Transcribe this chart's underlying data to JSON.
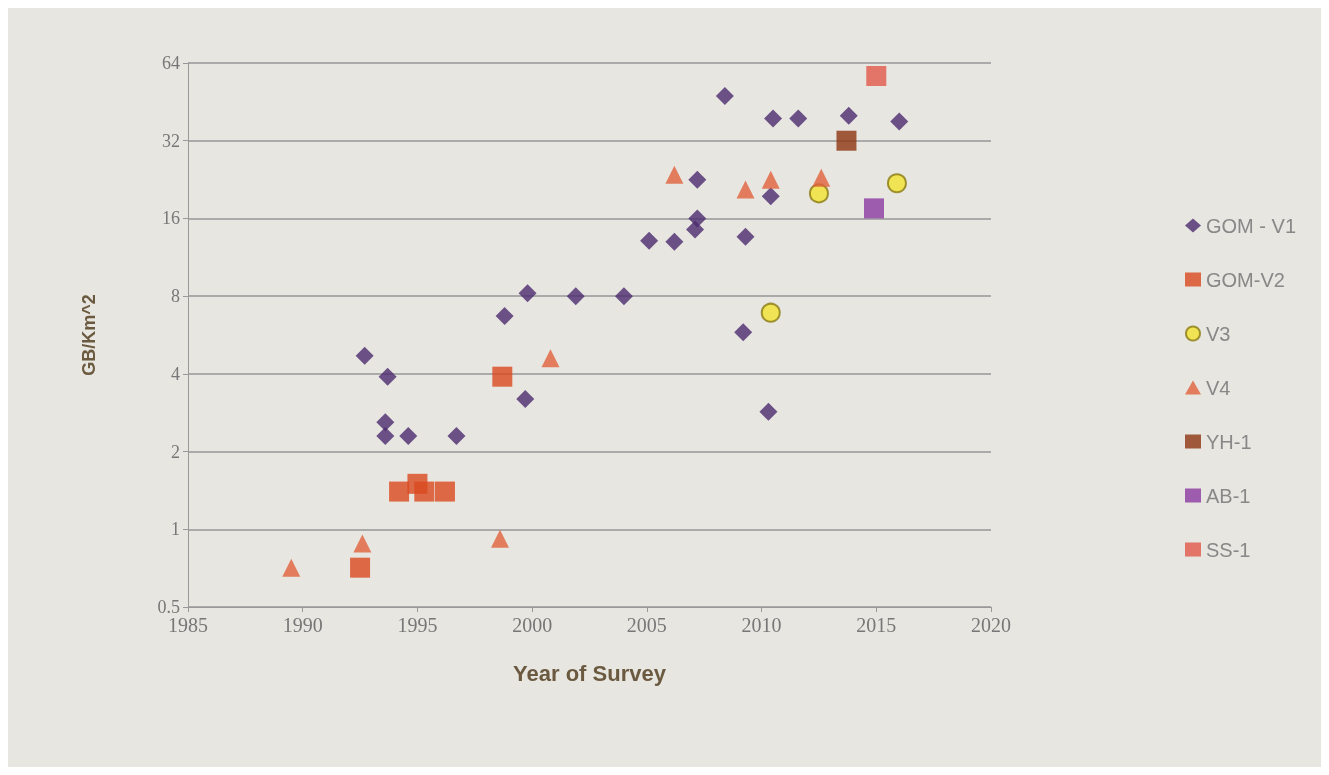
{
  "chart_data": {
    "type": "scatter",
    "xlabel": "Year of Survey",
    "ylabel": "GB/Km^2",
    "log": "y",
    "grid": "y",
    "legend": "right",
    "xlim": [
      1985,
      2020
    ],
    "xticks": [
      1985,
      1990,
      1995,
      2000,
      2005,
      2010,
      2015,
      2020
    ],
    "ylim": [
      0.5,
      64
    ],
    "yticks": [
      0.5,
      1,
      2,
      4,
      8,
      16,
      32,
      64
    ],
    "series": [
      {
        "name": "GOM - V1",
        "color": "#4b2a6e",
        "marker": "diamond",
        "x": [
          1992.7,
          1993.7,
          1993.6,
          1993.6,
          1994.6,
          1996.7,
          1998.8,
          1999.7,
          1999.8,
          2001.9,
          2004.0,
          2005.1,
          2006.2,
          2007.1,
          2007.2,
          2007.2,
          2008.4,
          2010.5,
          2011.6,
          2013.8,
          2016.0,
          2010.4,
          2009.3,
          2009.2,
          2010.3
        ],
        "values": [
          4.7,
          3.9,
          2.6,
          2.3,
          2.3,
          2.3,
          6.7,
          3.2,
          8.2,
          8,
          8,
          13.1,
          13,
          14.5,
          16,
          22.6,
          47.7,
          39,
          39,
          40,
          38,
          19.5,
          13.6,
          5.8,
          2.85
        ]
      },
      {
        "name": "GOM-V2",
        "color": "#d9481e",
        "marker": "square",
        "x": [
          1992.5,
          1994.2,
          1995.0,
          1995.3,
          1996.2,
          1998.7
        ],
        "values": [
          0.71,
          1.4,
          1.5,
          1.4,
          1.4,
          3.9
        ]
      },
      {
        "name": "V3",
        "color": "#f2e431",
        "marker": "circle",
        "x": [
          2012.5,
          2015.9,
          2010.4
        ],
        "values": [
          20,
          21.9,
          6.9
        ]
      },
      {
        "name": "V4",
        "color": "#e0623c",
        "marker": "triangle",
        "x": [
          1989.5,
          1992.6,
          1998.6,
          2000.8,
          2006.2,
          2009.3,
          2010.4,
          2012.6
        ],
        "values": [
          0.71,
          0.88,
          0.92,
          4.6,
          23.6,
          20.7,
          22.6,
          23
        ]
      },
      {
        "name": "YH-1",
        "color": "#8c3510",
        "marker": "square",
        "x": [
          2013.7
        ],
        "values": [
          32
        ]
      },
      {
        "name": "AB-1",
        "color": "#8a3aa0",
        "marker": "square",
        "x": [
          2014.9
        ],
        "values": [
          17.5
        ]
      },
      {
        "name": "SS-1",
        "color": "#e0584a",
        "marker": "square",
        "x": [
          2015.0
        ],
        "values": [
          57
        ]
      }
    ]
  }
}
